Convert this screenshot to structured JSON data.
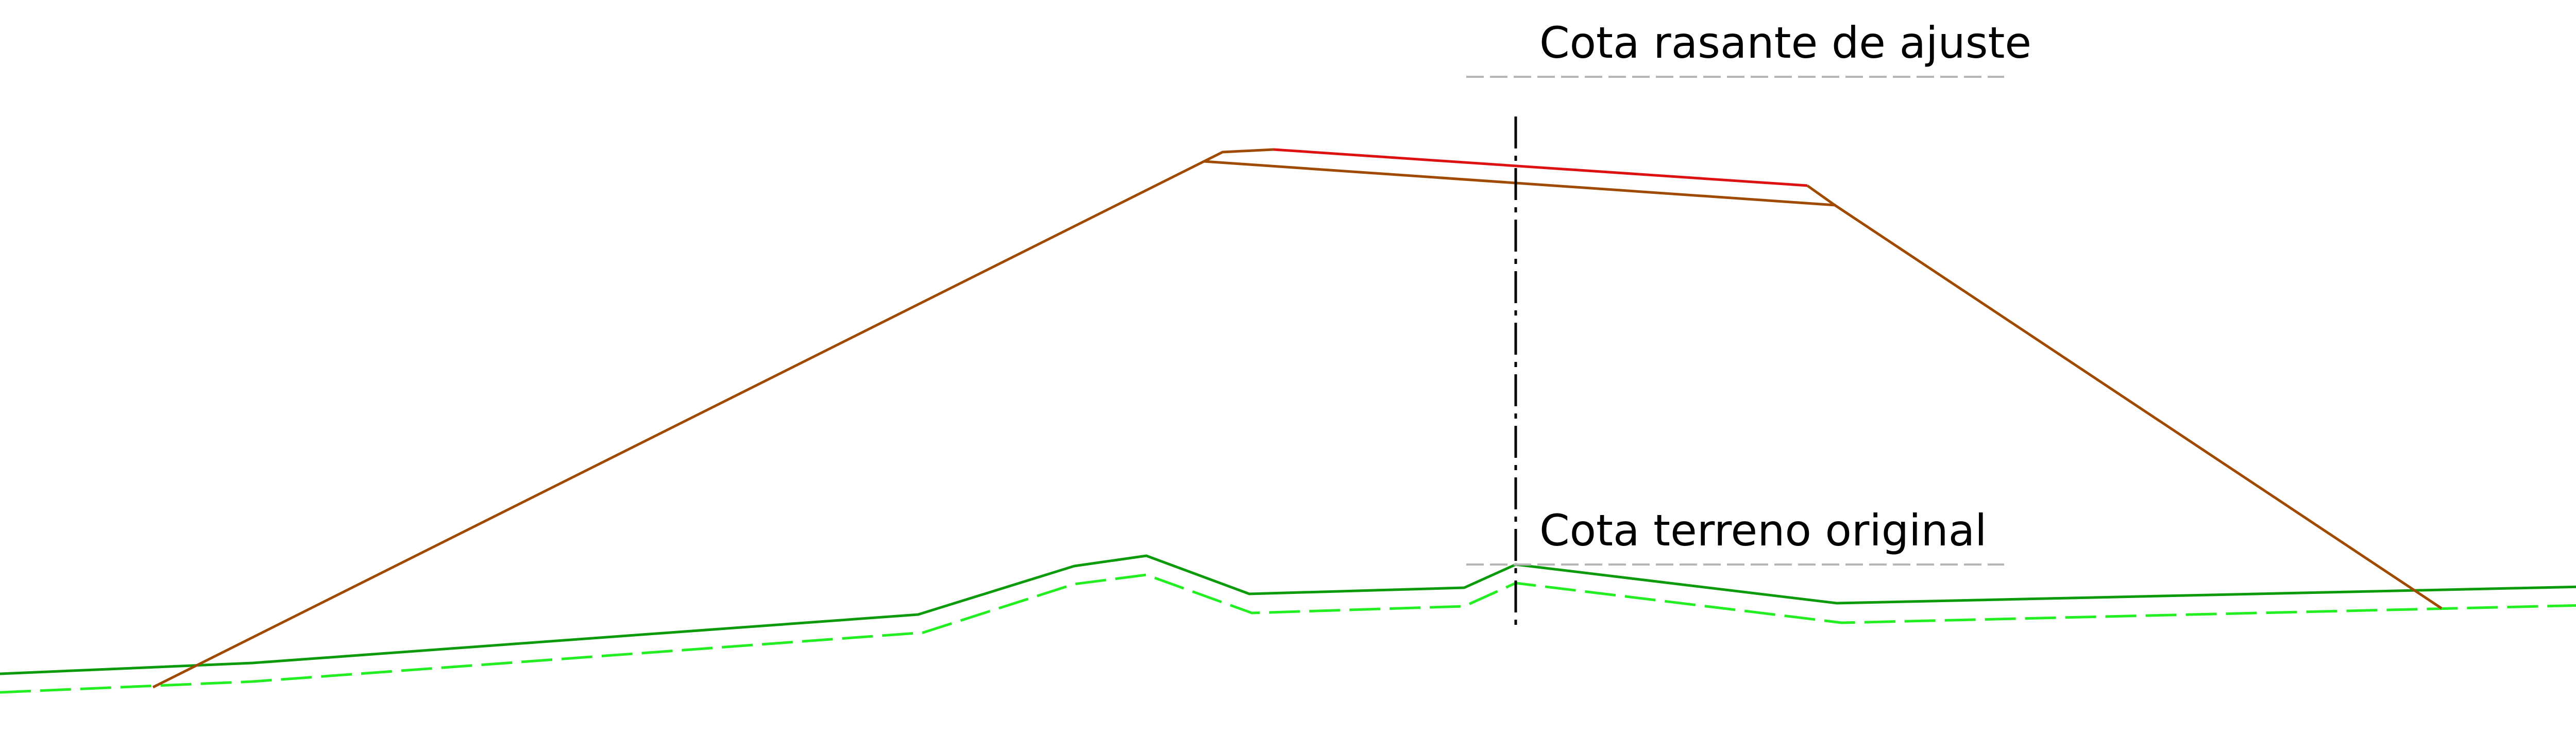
{
  "labels": {
    "design_grade": "Cota rasante de ajuste",
    "original_ground": "Cota terreno original"
  },
  "colors": {
    "background": "#ffffff",
    "pavement_surface": "#dd1111",
    "embankment": "#a04a00",
    "ground_existing": "#0a9a0a",
    "ground_offset": "#22ee22",
    "centerline": "#000000",
    "label_leader": "#b5b5b5"
  },
  "line_styles": {
    "centerline": "dash-dot",
    "ground_offset": "dashed",
    "label_leader": "dashed"
  }
}
